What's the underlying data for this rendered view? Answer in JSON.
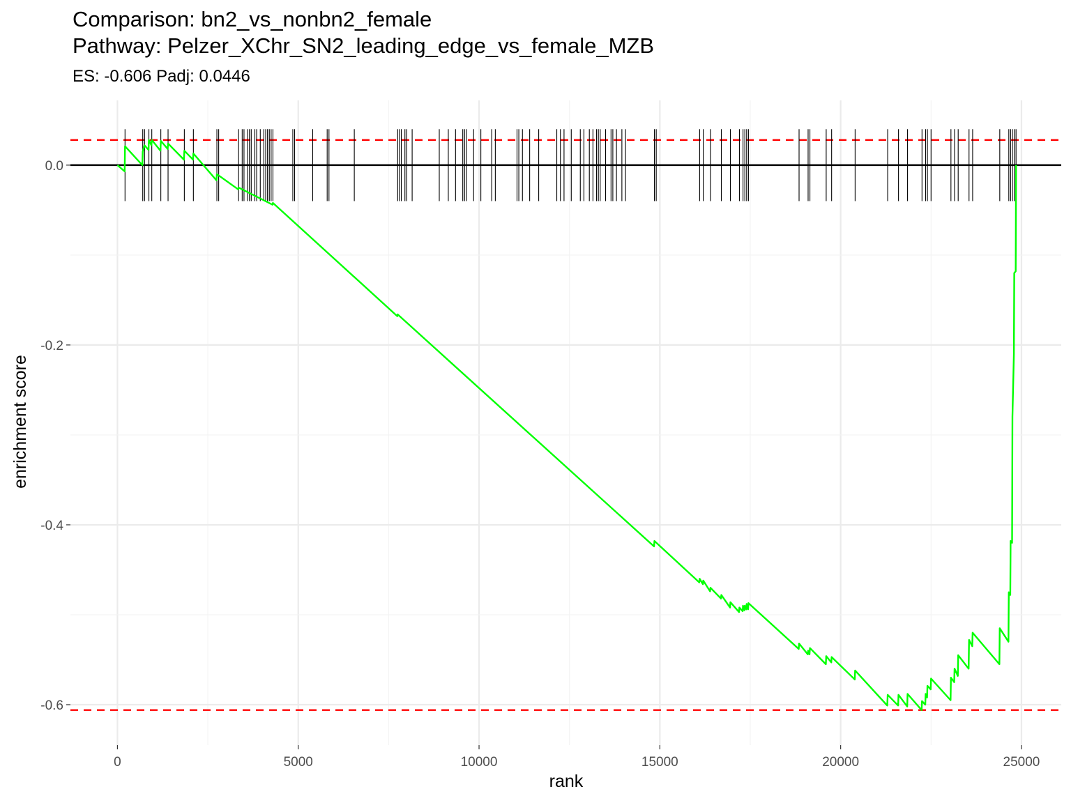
{
  "chart_data": {
    "type": "line",
    "title": [
      "Comparison: bn2_vs_nonbn2_female",
      "Pathway: Pelzer_XChr_SN2_leading_edge_vs_female_MZB"
    ],
    "subtitle": "ES: -0.606 Padj: 0.0446",
    "xlabel": "rank",
    "ylabel": "enrichment score",
    "xlim": [
      -1300,
      26100
    ],
    "ylim": [
      -0.645,
      0.072
    ],
    "x_ticks": [
      0,
      5000,
      10000,
      15000,
      20000,
      25000
    ],
    "y_ticks": [
      0.0,
      -0.2,
      -0.4,
      -0.6
    ],
    "x_tick_labels": [
      "0",
      "5000",
      "10000",
      "15000",
      "20000",
      "25000"
    ],
    "y_tick_labels": [
      "0.0",
      "-0.2",
      "-0.4",
      "-0.6"
    ],
    "grid": true,
    "reference_lines": [
      {
        "y": 0.0,
        "style": "solid",
        "color": "#000000"
      },
      {
        "y": 0.028,
        "style": "dashed",
        "color": "#ff0000"
      },
      {
        "y": -0.606,
        "style": "dashed",
        "color": "#ff0000"
      }
    ],
    "hit_ranks": [
      210,
      700,
      750,
      870,
      950,
      1200,
      1400,
      1850,
      2100,
      2750,
      2800,
      3350,
      3450,
      3500,
      3600,
      3650,
      3700,
      3800,
      3850,
      3950,
      4050,
      4100,
      4150,
      4200,
      4250,
      4300,
      4850,
      4900,
      5400,
      5800,
      5850,
      6550,
      7750,
      7800,
      7850,
      7950,
      8000,
      8150,
      8900,
      9150,
      9350,
      9550,
      9600,
      9650,
      9850,
      10050,
      10350,
      10450,
      11050,
      11100,
      11200,
      11400,
      11650,
      12150,
      12250,
      12350,
      12550,
      12800,
      12900,
      13050,
      13150,
      13250,
      13300,
      13350,
      13500,
      13650,
      13700,
      13800,
      13950,
      14050,
      14850,
      14900,
      16100,
      16200,
      16400,
      16700,
      16950,
      17200,
      17300,
      17350,
      17400,
      17450,
      18850,
      19100,
      19150,
      19600,
      19750,
      20400,
      21300,
      21600,
      21850,
      22250,
      22350,
      22400,
      22500,
      23050,
      23150,
      23250,
      23550,
      23650,
      24400,
      24650,
      24700,
      24750,
      24800,
      24850
    ],
    "hit_bar_range": [
      -0.04,
      0.04
    ],
    "series": [
      {
        "color": "#00ff00",
        "x": [
          0,
          200,
          210,
          690,
          700,
          750,
          860,
          870,
          940,
          950,
          1190,
          1200,
          1390,
          1400,
          1840,
          1850,
          2090,
          2100,
          2740,
          2750,
          3340,
          3350,
          4290,
          4300,
          7740,
          7750,
          14840,
          14850,
          16090,
          16100,
          16190,
          16200,
          16390,
          16400,
          16690,
          16700,
          16940,
          16950,
          17190,
          17200,
          17290,
          17300,
          17340,
          17350,
          17390,
          17400,
          17440,
          17450,
          18840,
          18850,
          19090,
          19100,
          19140,
          19150,
          19590,
          19600,
          19740,
          19750,
          20390,
          20400,
          21290,
          21300,
          21590,
          21600,
          21840,
          21850,
          22240,
          22250,
          22340,
          22350,
          22390,
          22400,
          22490,
          22500,
          23040,
          23050,
          23140,
          23150,
          23240,
          23250,
          23540,
          23550,
          23640,
          23650,
          24390,
          24400,
          24640,
          24650,
          24690,
          24700,
          24740,
          24750,
          24790,
          24800,
          24840,
          24850
        ],
        "y": [
          0.0,
          -0.007,
          0.021,
          0.0,
          0.015,
          0.022,
          0.017,
          0.028,
          0.022,
          0.028,
          0.016,
          0.027,
          0.018,
          0.024,
          0.006,
          0.016,
          0.006,
          0.013,
          -0.017,
          -0.01,
          -0.027,
          -0.025,
          -0.044,
          -0.042,
          -0.168,
          -0.166,
          -0.424,
          -0.418,
          -0.464,
          -0.46,
          -0.466,
          -0.462,
          -0.474,
          -0.47,
          -0.482,
          -0.478,
          -0.492,
          -0.486,
          -0.497,
          -0.492,
          -0.496,
          -0.49,
          -0.495,
          -0.49,
          -0.494,
          -0.488,
          -0.494,
          -0.487,
          -0.538,
          -0.532,
          -0.544,
          -0.54,
          -0.544,
          -0.537,
          -0.555,
          -0.546,
          -0.553,
          -0.547,
          -0.572,
          -0.562,
          -0.601,
          -0.589,
          -0.601,
          -0.589,
          -0.602,
          -0.588,
          -0.606,
          -0.596,
          -0.6,
          -0.588,
          -0.592,
          -0.579,
          -0.583,
          -0.571,
          -0.595,
          -0.57,
          -0.575,
          -0.56,
          -0.568,
          -0.545,
          -0.56,
          -0.528,
          -0.535,
          -0.52,
          -0.555,
          -0.515,
          -0.53,
          -0.475,
          -0.478,
          -0.418,
          -0.42,
          -0.28,
          -0.21,
          -0.12,
          -0.118,
          0.0
        ]
      }
    ]
  }
}
